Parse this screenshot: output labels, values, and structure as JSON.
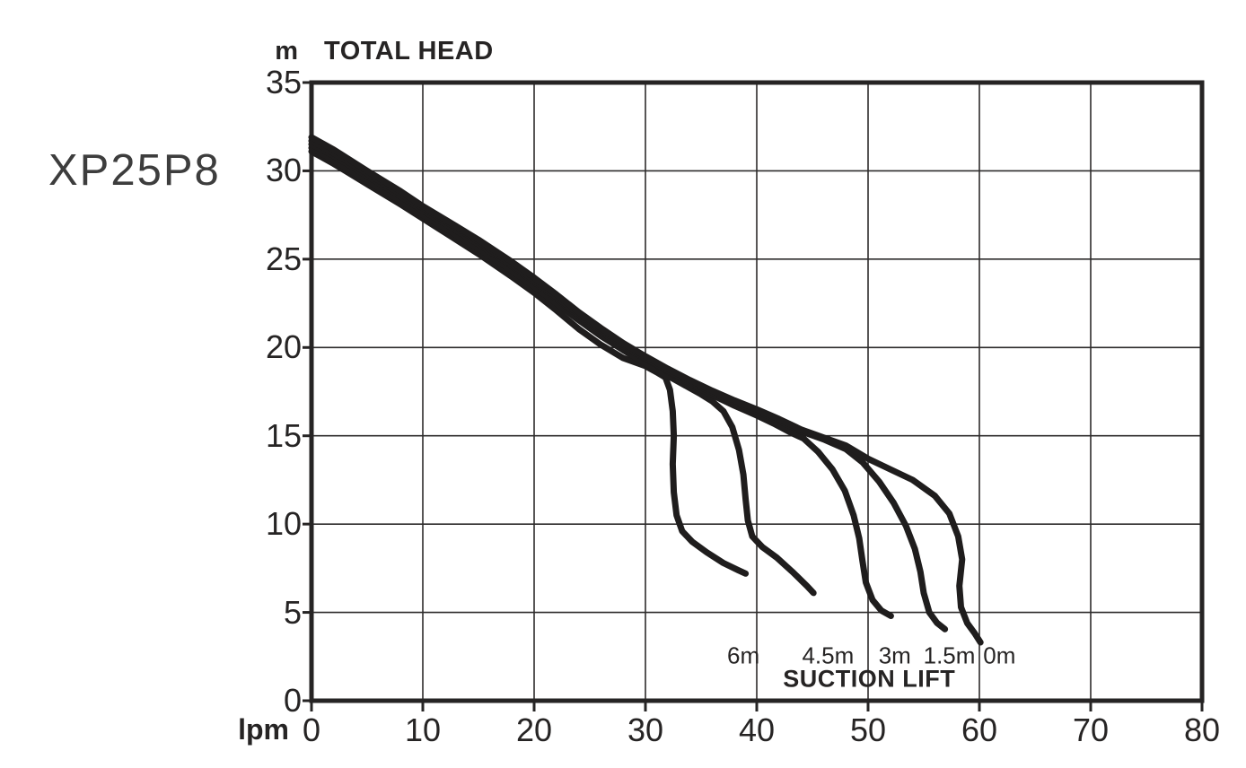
{
  "model": "XP25P8",
  "colors": {
    "curve": "#1f1d1d",
    "frame": "#262424",
    "grid": "#2e2c2c",
    "text": "#262424",
    "background": "#ffffff"
  },
  "chart_data": {
    "type": "line",
    "title": "TOTAL HEAD",
    "y_unit": "m",
    "x_unit": "lpm",
    "xlabel": "Flow (lpm)",
    "ylabel": "Total head (m)",
    "xlim": [
      0,
      80
    ],
    "ylim": [
      0,
      35
    ],
    "x_ticks": [
      0,
      10,
      20,
      30,
      40,
      50,
      60,
      70,
      80
    ],
    "y_ticks": [
      0,
      5,
      10,
      15,
      20,
      25,
      30,
      35
    ],
    "grid": "on, full frame, gridlines at every labeled tick",
    "legend_position": "inline labels under curve endpoints",
    "annotation": {
      "text": "SUCTION LIFT",
      "x": 50.1,
      "y": 1.2
    },
    "series_labels": [
      {
        "text": "6m",
        "x": 38.8,
        "y": 2.55
      },
      {
        "text": "4.5m",
        "x": 46.4,
        "y": 2.55
      },
      {
        "text": "3m",
        "x": 52.4,
        "y": 2.55
      },
      {
        "text": "1.5m",
        "x": 57.3,
        "y": 2.55
      },
      {
        "text": "0m",
        "x": 61.8,
        "y": 2.55
      }
    ],
    "series": [
      {
        "name": "6m suction lift",
        "points": [
          [
            0,
            31.1
          ],
          [
            2,
            30.4
          ],
          [
            5,
            29.25
          ],
          [
            8,
            28.1
          ],
          [
            10,
            27.3
          ],
          [
            12,
            26.5
          ],
          [
            15,
            25.3
          ],
          [
            18,
            24.0
          ],
          [
            20,
            23.1
          ],
          [
            22,
            22.1
          ],
          [
            24,
            21.05
          ],
          [
            26,
            20.15
          ],
          [
            28,
            19.4
          ],
          [
            30,
            18.95
          ],
          [
            31,
            18.6
          ],
          [
            31.8,
            18.3
          ],
          [
            32.2,
            17.6
          ],
          [
            32.45,
            16.4
          ],
          [
            32.55,
            15.0
          ],
          [
            32.45,
            13.4
          ],
          [
            32.55,
            11.8
          ],
          [
            32.8,
            10.5
          ],
          [
            33.3,
            9.6
          ],
          [
            34.2,
            9.0
          ],
          [
            35.5,
            8.4
          ],
          [
            37,
            7.8
          ],
          [
            38.3,
            7.4
          ],
          [
            39,
            7.2
          ]
        ]
      },
      {
        "name": "4.5m suction lift",
        "points": [
          [
            0,
            31.3
          ],
          [
            2,
            30.6
          ],
          [
            5,
            29.45
          ],
          [
            8,
            28.3
          ],
          [
            10,
            27.5
          ],
          [
            12,
            26.75
          ],
          [
            15,
            25.6
          ],
          [
            18,
            24.35
          ],
          [
            20,
            23.45
          ],
          [
            22,
            22.5
          ],
          [
            24,
            21.55
          ],
          [
            26,
            20.65
          ],
          [
            28,
            19.85
          ],
          [
            30,
            19.1
          ],
          [
            31,
            18.75
          ],
          [
            32,
            18.4
          ],
          [
            33,
            18.05
          ],
          [
            34,
            17.7
          ],
          [
            35,
            17.35
          ],
          [
            36,
            16.95
          ],
          [
            37,
            16.4
          ],
          [
            37.8,
            15.5
          ],
          [
            38.4,
            14.2
          ],
          [
            38.8,
            12.8
          ],
          [
            39,
            11.4
          ],
          [
            39.2,
            10.2
          ],
          [
            39.6,
            9.3
          ],
          [
            40.5,
            8.7
          ],
          [
            41.8,
            8.1
          ],
          [
            43.2,
            7.3
          ],
          [
            44.5,
            6.5
          ],
          [
            45.1,
            6.1
          ]
        ]
      },
      {
        "name": "3m suction lift",
        "points": [
          [
            0,
            31.5
          ],
          [
            2,
            30.85
          ],
          [
            5,
            29.7
          ],
          [
            8,
            28.55
          ],
          [
            10,
            27.75
          ],
          [
            12,
            27.0
          ],
          [
            15,
            25.85
          ],
          [
            18,
            24.6
          ],
          [
            20,
            23.7
          ],
          [
            22,
            22.75
          ],
          [
            24,
            21.8
          ],
          [
            26,
            20.9
          ],
          [
            28,
            20.05
          ],
          [
            30,
            19.35
          ],
          [
            32,
            18.65
          ],
          [
            34,
            17.95
          ],
          [
            36,
            17.3
          ],
          [
            38,
            16.7
          ],
          [
            40,
            16.15
          ],
          [
            41.5,
            15.7
          ],
          [
            43,
            15.2
          ],
          [
            44.2,
            14.85
          ],
          [
            45.5,
            14.1
          ],
          [
            46.8,
            13.1
          ],
          [
            47.9,
            11.9
          ],
          [
            48.7,
            10.5
          ],
          [
            49.2,
            9.2
          ],
          [
            49.5,
            7.9
          ],
          [
            49.8,
            6.7
          ],
          [
            50.4,
            5.7
          ],
          [
            51.2,
            5.1
          ],
          [
            52.05,
            4.8
          ]
        ]
      },
      {
        "name": "1.5m suction lift",
        "points": [
          [
            0,
            31.7
          ],
          [
            2,
            31.0
          ],
          [
            5,
            29.85
          ],
          [
            8,
            28.7
          ],
          [
            10,
            27.9
          ],
          [
            12,
            27.15
          ],
          [
            15,
            26.0
          ],
          [
            18,
            24.7
          ],
          [
            20,
            23.8
          ],
          [
            22,
            22.85
          ],
          [
            24,
            21.9
          ],
          [
            26,
            21.0
          ],
          [
            28,
            20.15
          ],
          [
            30,
            19.4
          ],
          [
            32,
            18.7
          ],
          [
            34,
            18.05
          ],
          [
            36,
            17.45
          ],
          [
            38,
            16.9
          ],
          [
            40,
            16.4
          ],
          [
            42,
            15.85
          ],
          [
            44,
            15.25
          ],
          [
            46,
            14.8
          ],
          [
            48,
            14.25
          ],
          [
            49.5,
            13.5
          ],
          [
            51,
            12.4
          ],
          [
            52.3,
            11.2
          ],
          [
            53.4,
            9.9
          ],
          [
            54.2,
            8.6
          ],
          [
            54.7,
            7.3
          ],
          [
            55,
            6.1
          ],
          [
            55.5,
            5.0
          ],
          [
            56.2,
            4.4
          ],
          [
            56.9,
            4.05
          ]
        ]
      },
      {
        "name": "0m suction lift",
        "points": [
          [
            0,
            31.9
          ],
          [
            2,
            31.2
          ],
          [
            5,
            30.0
          ],
          [
            8,
            28.85
          ],
          [
            10,
            28.0
          ],
          [
            12,
            27.25
          ],
          [
            15,
            26.1
          ],
          [
            18,
            24.85
          ],
          [
            20,
            23.95
          ],
          [
            22,
            23.0
          ],
          [
            24,
            22.0
          ],
          [
            26,
            21.1
          ],
          [
            28,
            20.25
          ],
          [
            30,
            19.5
          ],
          [
            32,
            18.8
          ],
          [
            34,
            18.15
          ],
          [
            36,
            17.55
          ],
          [
            38,
            17.0
          ],
          [
            40,
            16.5
          ],
          [
            42,
            15.95
          ],
          [
            44,
            15.35
          ],
          [
            46,
            14.9
          ],
          [
            48,
            14.45
          ],
          [
            50,
            13.7
          ],
          [
            52,
            13.1
          ],
          [
            54,
            12.5
          ],
          [
            56,
            11.6
          ],
          [
            57.3,
            10.6
          ],
          [
            58.1,
            9.3
          ],
          [
            58.45,
            8.0
          ],
          [
            58.2,
            6.5
          ],
          [
            58.35,
            5.3
          ],
          [
            58.9,
            4.4
          ],
          [
            59.6,
            3.8
          ],
          [
            60.1,
            3.3
          ]
        ]
      }
    ]
  }
}
